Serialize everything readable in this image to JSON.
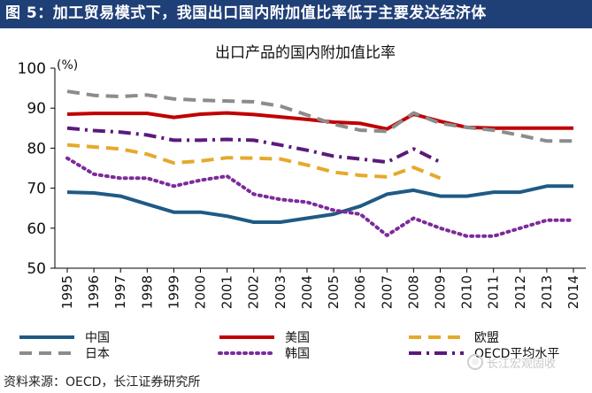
{
  "figure_title": "图 5：加工贸易模式下，我国出口国内附加值比率低于主要发达经济体",
  "source_note": "资料来源：OECD，长江证券研究所",
  "watermark": "长江宏观固收",
  "colors": {
    "title_bg": "#1f3f77",
    "series_china": "#1f5a85",
    "series_us": "#c00000",
    "series_eu": "#e5a92b",
    "series_japan": "#8c8c8c",
    "series_korea": "#7c2b9a",
    "series_oecd": "#5b1a7b"
  },
  "chart_data": {
    "type": "line",
    "title": "出口产品的国内附加值比率",
    "ylabel": "(%)",
    "xlabel": "",
    "x": [
      "1995",
      "1996",
      "1997",
      "1998",
      "1999",
      "2000",
      "2001",
      "2002",
      "2003",
      "2004",
      "2005",
      "2006",
      "2007",
      "2008",
      "2009",
      "2010",
      "2011",
      "2012",
      "2013",
      "2014"
    ],
    "ylim": [
      50,
      100
    ],
    "yticks": [
      50,
      60,
      70,
      80,
      90,
      100
    ],
    "grid": false,
    "legend_position": "bottom",
    "series": [
      {
        "name": "中国",
        "style": "solid",
        "color": "#1f5a85",
        "values": [
          69,
          68.8,
          68,
          66,
          64,
          64,
          63,
          61.5,
          61.5,
          62.5,
          63.5,
          65.5,
          68.5,
          69.5,
          68,
          68,
          69,
          69,
          70.5,
          70.5
        ]
      },
      {
        "name": "美国",
        "style": "solid",
        "color": "#c00000",
        "values": [
          88.5,
          88.7,
          88.7,
          88.7,
          87.7,
          88.5,
          88.8,
          88.4,
          87.8,
          87.2,
          86.5,
          86.2,
          84.8,
          88.5,
          86.7,
          85.2,
          85,
          85,
          85,
          85
        ]
      },
      {
        "name": "欧盟",
        "style": "dash",
        "color": "#e5a92b",
        "values": [
          80.8,
          80.3,
          79.8,
          78.5,
          76.3,
          76.8,
          77.6,
          77.5,
          77.3,
          75.8,
          74,
          73.2,
          72.8,
          75.2,
          72.5,
          null,
          null,
          null,
          null,
          null
        ]
      },
      {
        "name": "日本",
        "style": "dash",
        "color": "#8c8c8c",
        "values": [
          94.2,
          93.2,
          92.9,
          93.3,
          92.3,
          92,
          91.8,
          91.6,
          90.5,
          88.3,
          86,
          84.5,
          84.2,
          88.8,
          86.2,
          85.2,
          84.5,
          83.2,
          81.8,
          81.8
        ]
      },
      {
        "name": "韩国",
        "style": "dot",
        "color": "#7c2b9a",
        "values": [
          77.5,
          73.5,
          72.5,
          72.5,
          70.5,
          72,
          73,
          68.5,
          67.2,
          66.5,
          64.5,
          63.5,
          58.2,
          62.5,
          60,
          58,
          58,
          60,
          62,
          62
        ]
      },
      {
        "name": "OECD平均水平",
        "style": "dashdot",
        "color": "#5b1a7b",
        "values": [
          85,
          84.4,
          84,
          83.3,
          82,
          82,
          82.2,
          82,
          80.8,
          79.5,
          78,
          77.3,
          76.5,
          79.8,
          76.5,
          null,
          null,
          null,
          null,
          null
        ]
      }
    ]
  }
}
